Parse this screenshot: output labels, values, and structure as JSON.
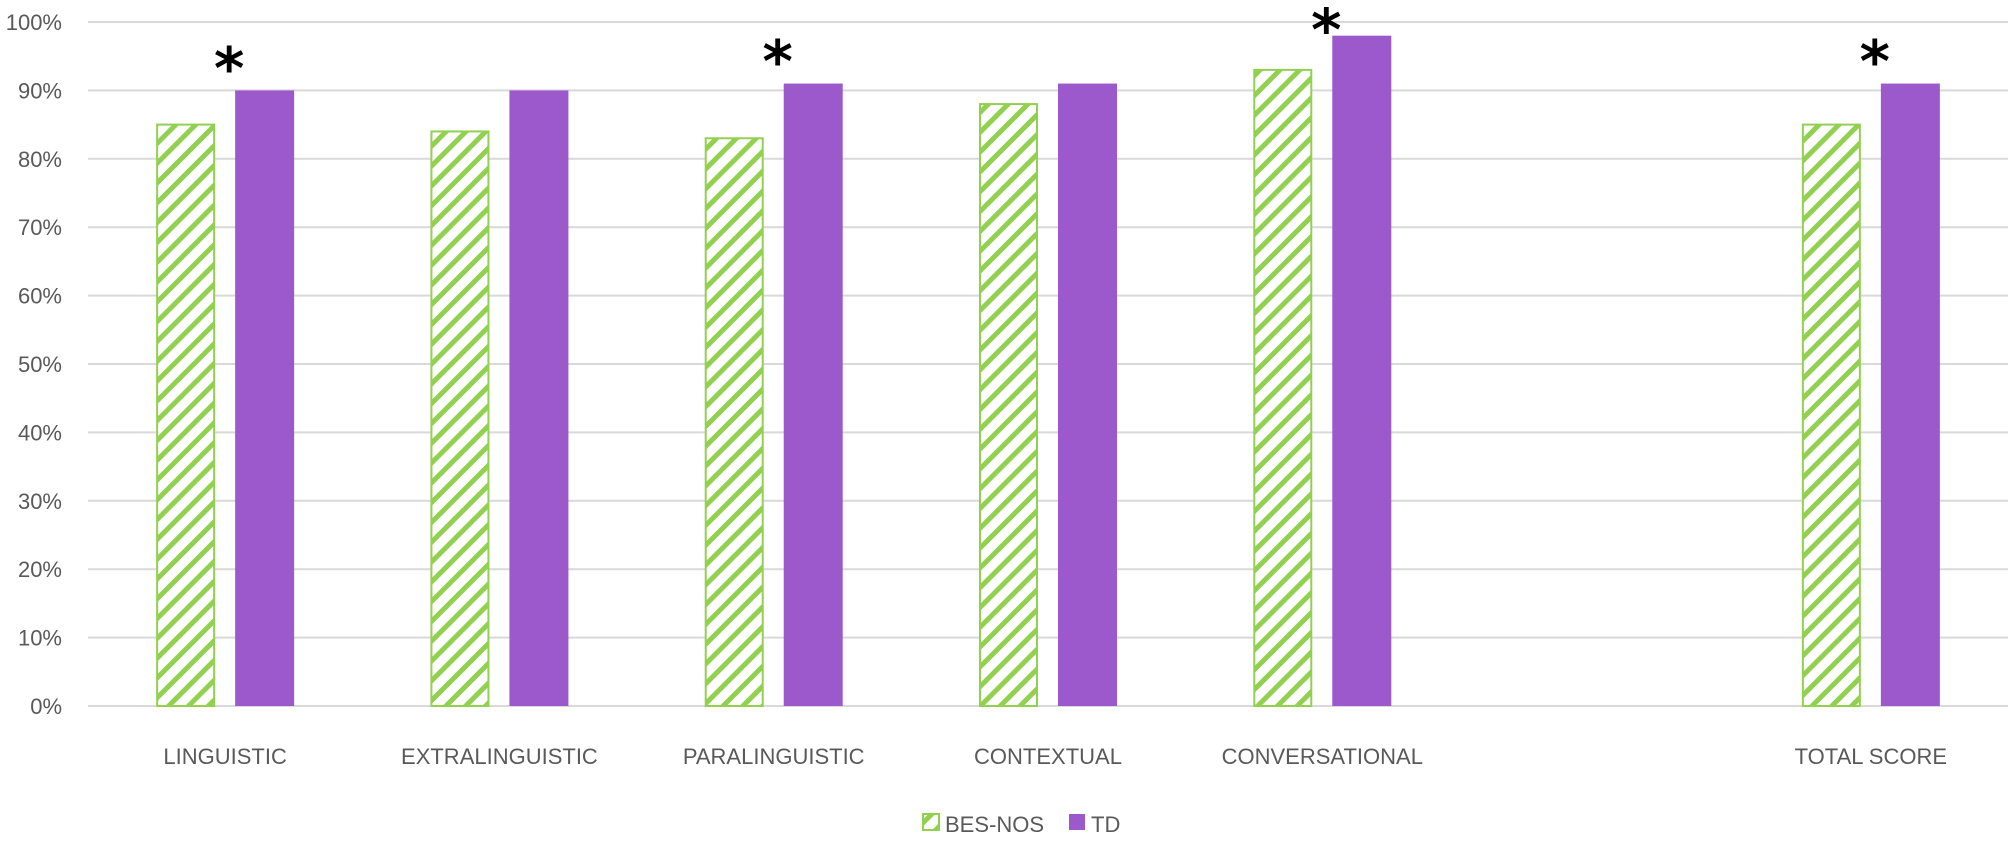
{
  "chart_data": {
    "type": "bar",
    "categories": [
      "LINGUISTIC",
      "EXTRALINGUISTIC",
      "PARALINGUISTIC",
      "CONTEXTUAL",
      "CONVERSATIONAL",
      "",
      "TOTAL SCORE"
    ],
    "series": [
      {
        "name": "BES-NOS",
        "values": [
          85,
          84,
          83,
          88,
          93,
          null,
          85
        ],
        "color": "#92D050",
        "pattern": "diagonal-hatch"
      },
      {
        "name": "TD",
        "values": [
          90,
          90,
          91,
          91,
          98,
          null,
          91
        ],
        "color": "#9B59CC",
        "pattern": "solid"
      }
    ],
    "ylim": [
      0,
      100
    ],
    "y_ticks": [
      "0%",
      "10%",
      "20%",
      "30%",
      "40%",
      "50%",
      "60%",
      "70%",
      "80%",
      "90%",
      "100%"
    ],
    "title": "",
    "xlabel": "",
    "ylabel": "",
    "grid": true,
    "legend": "bottom-center",
    "significance_marker": "*",
    "significant_categories": [
      "LINGUISTIC",
      "PARALINGUISTIC",
      "CONVERSATIONAL",
      "TOTAL SCORE"
    ],
    "colors": {
      "grid": "#D9D9D9",
      "axis_text": "#595959",
      "marker": "#000000"
    }
  }
}
